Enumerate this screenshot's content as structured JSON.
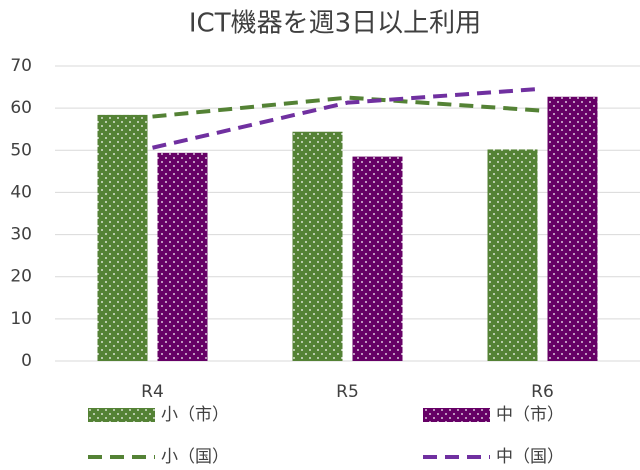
{
  "chart_data": {
    "type": "bar",
    "title": "ICT機器を週3日以上利用",
    "categories": [
      "R4",
      "R5",
      "R6"
    ],
    "series": [
      {
        "name": "小（市）",
        "type": "bar",
        "color": "#548235",
        "values": [
          58.4,
          54.4,
          50.2
        ]
      },
      {
        "name": "中（市）",
        "type": "bar",
        "color": "#660066",
        "values": [
          49.4,
          48.5,
          62.7
        ]
      },
      {
        "name": "小（国）",
        "type": "line",
        "color": "#548235",
        "values": [
          58.0,
          62.5,
          59.4
        ]
      },
      {
        "name": "中（国）",
        "type": "line",
        "color": "#7030a0",
        "values": [
          50.6,
          61.3,
          64.6
        ]
      }
    ],
    "ylim": [
      0,
      70
    ],
    "yticks": [
      0,
      10,
      20,
      30,
      40,
      50,
      60,
      70
    ],
    "grid": true,
    "legend": "bottom"
  }
}
